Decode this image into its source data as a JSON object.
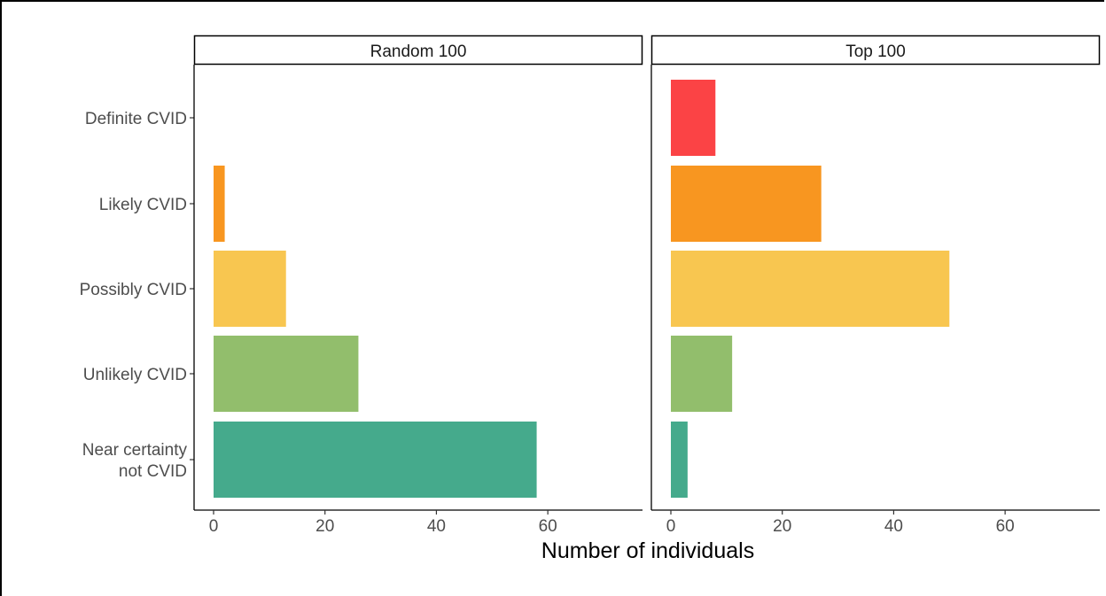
{
  "chart_data": {
    "type": "bar",
    "orientation": "horizontal",
    "xlabel": "Number of individuals",
    "xlim": [
      -3.5,
      77
    ],
    "xticks": [
      0,
      20,
      40,
      60
    ],
    "categories": [
      "Definite CVID",
      "Likely CVID",
      "Possibly CVID",
      "Unlikely CVID",
      "Near certainty\nnot CVID"
    ],
    "category_colors": [
      "#FB4345",
      "#F89620",
      "#F8C650",
      "#92BE6C",
      "#45AA8C"
    ],
    "panels": [
      {
        "title": "Random 100",
        "values": [
          0,
          2,
          13,
          26,
          58
        ]
      },
      {
        "title": "Top 100",
        "values": [
          8,
          27,
          50,
          11,
          3
        ]
      }
    ]
  }
}
